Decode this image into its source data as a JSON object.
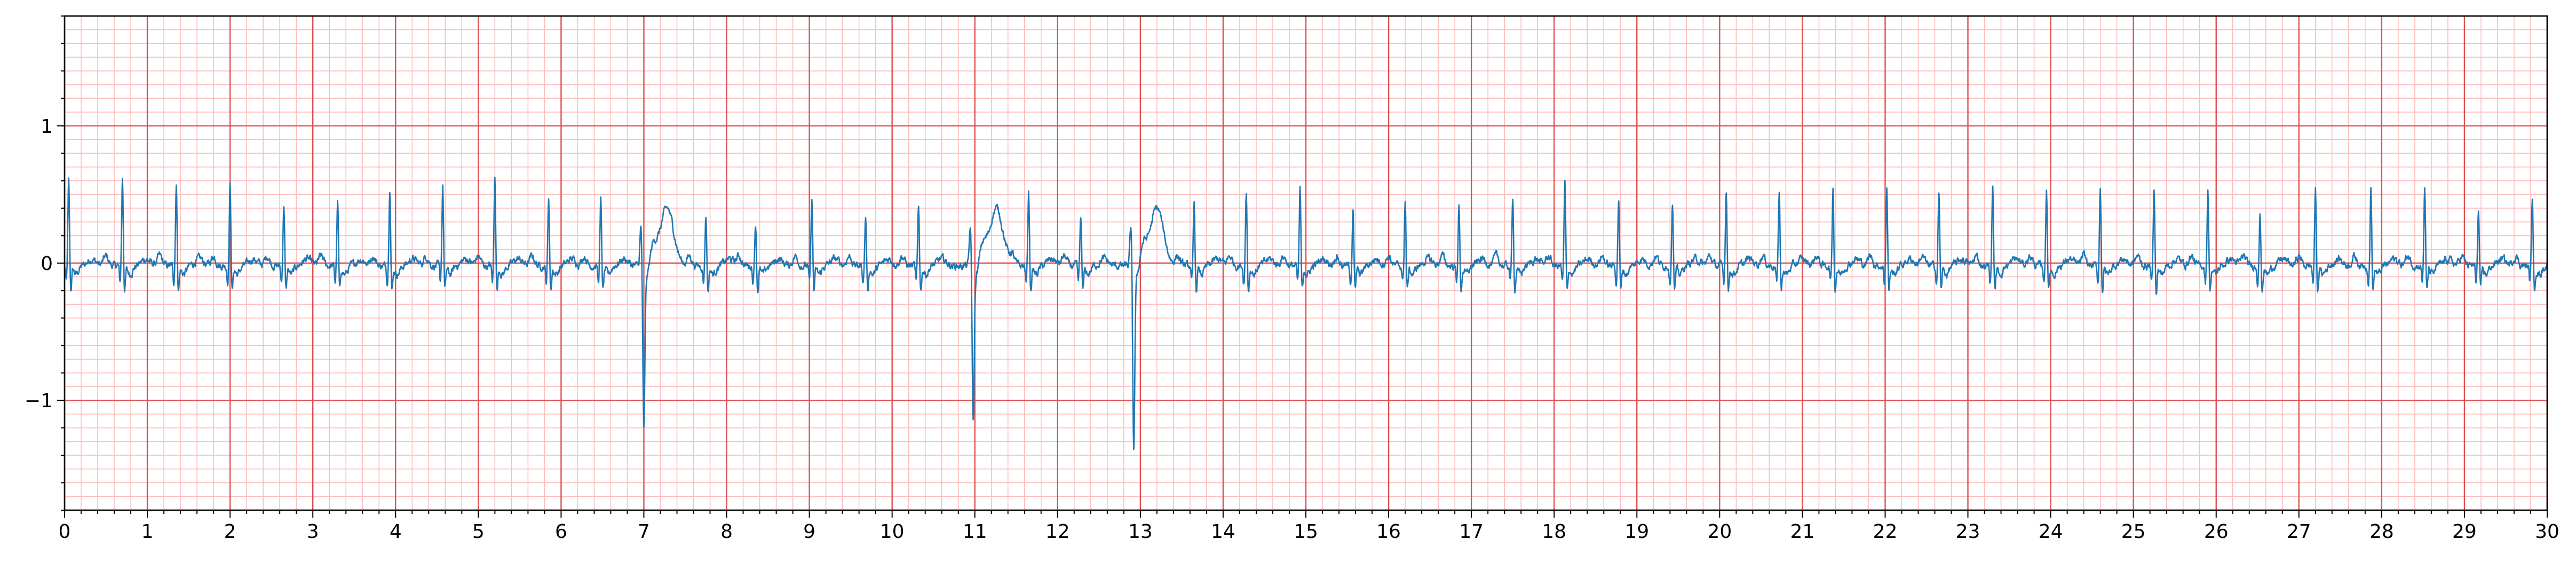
{
  "chart_data": {
    "type": "line",
    "title": "",
    "xlabel": "",
    "ylabel": "",
    "xlim": [
      0,
      30
    ],
    "ylim": [
      -1.8,
      1.8
    ],
    "grid": "ECG paper: major lines every 1 s and 0.5 mV, minor lines every 0.2 s and 0.1 mV",
    "x_ticks": [
      0,
      1,
      2,
      3,
      4,
      5,
      6,
      7,
      8,
      9,
      10,
      11,
      12,
      13,
      14,
      15,
      16,
      17,
      18,
      19,
      20,
      21,
      22,
      23,
      24,
      25,
      26,
      27,
      28,
      29,
      30
    ],
    "x_tick_labels": [
      "0",
      "1",
      "2",
      "3",
      "4",
      "5",
      "6",
      "7",
      "8",
      "9",
      "10",
      "11",
      "12",
      "13",
      "14",
      "15",
      "16",
      "17",
      "18",
      "19",
      "20",
      "21",
      "22",
      "23",
      "24",
      "25",
      "26",
      "27",
      "28",
      "29",
      "30"
    ],
    "y_ticks": [
      -1,
      0,
      1
    ],
    "y_tick_labels": [
      "−1",
      "0",
      "1"
    ],
    "series": [
      {
        "color": "#1f77b4",
        "beats": [
          {
            "t": 0.05,
            "amp": 0.62,
            "kind": "normal"
          },
          {
            "t": 0.7,
            "amp": 0.65,
            "kind": "normal"
          },
          {
            "t": 1.35,
            "amp": 0.61,
            "kind": "normal"
          },
          {
            "t": 2.0,
            "amp": 0.6,
            "kind": "normal"
          },
          {
            "t": 2.65,
            "amp": 0.46,
            "kind": "normal"
          },
          {
            "t": 3.3,
            "amp": 0.47,
            "kind": "normal"
          },
          {
            "t": 3.93,
            "amp": 0.59,
            "kind": "normal"
          },
          {
            "t": 4.57,
            "amp": 0.59,
            "kind": "normal"
          },
          {
            "t": 5.2,
            "amp": 0.67,
            "kind": "normal"
          },
          {
            "t": 5.85,
            "amp": 0.5,
            "kind": "normal"
          },
          {
            "t": 6.48,
            "amp": 0.48,
            "kind": "normal"
          },
          {
            "t": 7.0,
            "amp": -1.15,
            "kind": "pvc"
          },
          {
            "t": 7.75,
            "amp": 0.38,
            "kind": "normal"
          },
          {
            "t": 8.35,
            "amp": 0.32,
            "kind": "normal"
          },
          {
            "t": 9.03,
            "amp": 0.5,
            "kind": "normal"
          },
          {
            "t": 9.68,
            "amp": 0.37,
            "kind": "normal"
          },
          {
            "t": 10.32,
            "amp": 0.44,
            "kind": "normal"
          },
          {
            "t": 10.98,
            "amp": -1.08,
            "kind": "pvc"
          },
          {
            "t": 11.65,
            "amp": 0.55,
            "kind": "normal"
          },
          {
            "t": 12.28,
            "amp": 0.37,
            "kind": "normal"
          },
          {
            "t": 12.92,
            "amp": -1.28,
            "kind": "pvc"
          },
          {
            "t": 13.65,
            "amp": 0.46,
            "kind": "normal"
          },
          {
            "t": 14.28,
            "amp": 0.55,
            "kind": "normal"
          },
          {
            "t": 14.93,
            "amp": 0.56,
            "kind": "normal"
          },
          {
            "t": 15.57,
            "amp": 0.4,
            "kind": "normal"
          },
          {
            "t": 16.2,
            "amp": 0.48,
            "kind": "normal"
          },
          {
            "t": 16.85,
            "amp": 0.45,
            "kind": "normal"
          },
          {
            "t": 17.5,
            "amp": 0.52,
            "kind": "normal"
          },
          {
            "t": 18.13,
            "amp": 0.61,
            "kind": "normal"
          },
          {
            "t": 18.78,
            "amp": 0.5,
            "kind": "normal"
          },
          {
            "t": 19.43,
            "amp": 0.48,
            "kind": "normal"
          },
          {
            "t": 20.08,
            "amp": 0.57,
            "kind": "normal"
          },
          {
            "t": 20.72,
            "amp": 0.55,
            "kind": "normal"
          },
          {
            "t": 21.37,
            "amp": 0.57,
            "kind": "normal"
          },
          {
            "t": 22.02,
            "amp": 0.58,
            "kind": "normal"
          },
          {
            "t": 22.65,
            "amp": 0.55,
            "kind": "normal"
          },
          {
            "t": 23.3,
            "amp": 0.6,
            "kind": "normal"
          },
          {
            "t": 23.95,
            "amp": 0.57,
            "kind": "normal"
          },
          {
            "t": 24.6,
            "amp": 0.58,
            "kind": "normal"
          },
          {
            "t": 25.25,
            "amp": 0.56,
            "kind": "normal"
          },
          {
            "t": 25.9,
            "amp": 0.58,
            "kind": "normal"
          },
          {
            "t": 26.53,
            "amp": 0.38,
            "kind": "normal"
          },
          {
            "t": 27.2,
            "amp": 0.57,
            "kind": "normal"
          },
          {
            "t": 27.87,
            "amp": 0.57,
            "kind": "normal"
          },
          {
            "t": 28.52,
            "amp": 0.56,
            "kind": "normal"
          },
          {
            "t": 29.17,
            "amp": 0.4,
            "kind": "normal"
          },
          {
            "t": 29.82,
            "amp": 0.5,
            "kind": "normal"
          }
        ]
      }
    ]
  },
  "colors": {
    "major_grid": "#e05050",
    "minor_grid": "#ffbcbc",
    "trace": "#1f77b4",
    "axes": "#000000"
  }
}
